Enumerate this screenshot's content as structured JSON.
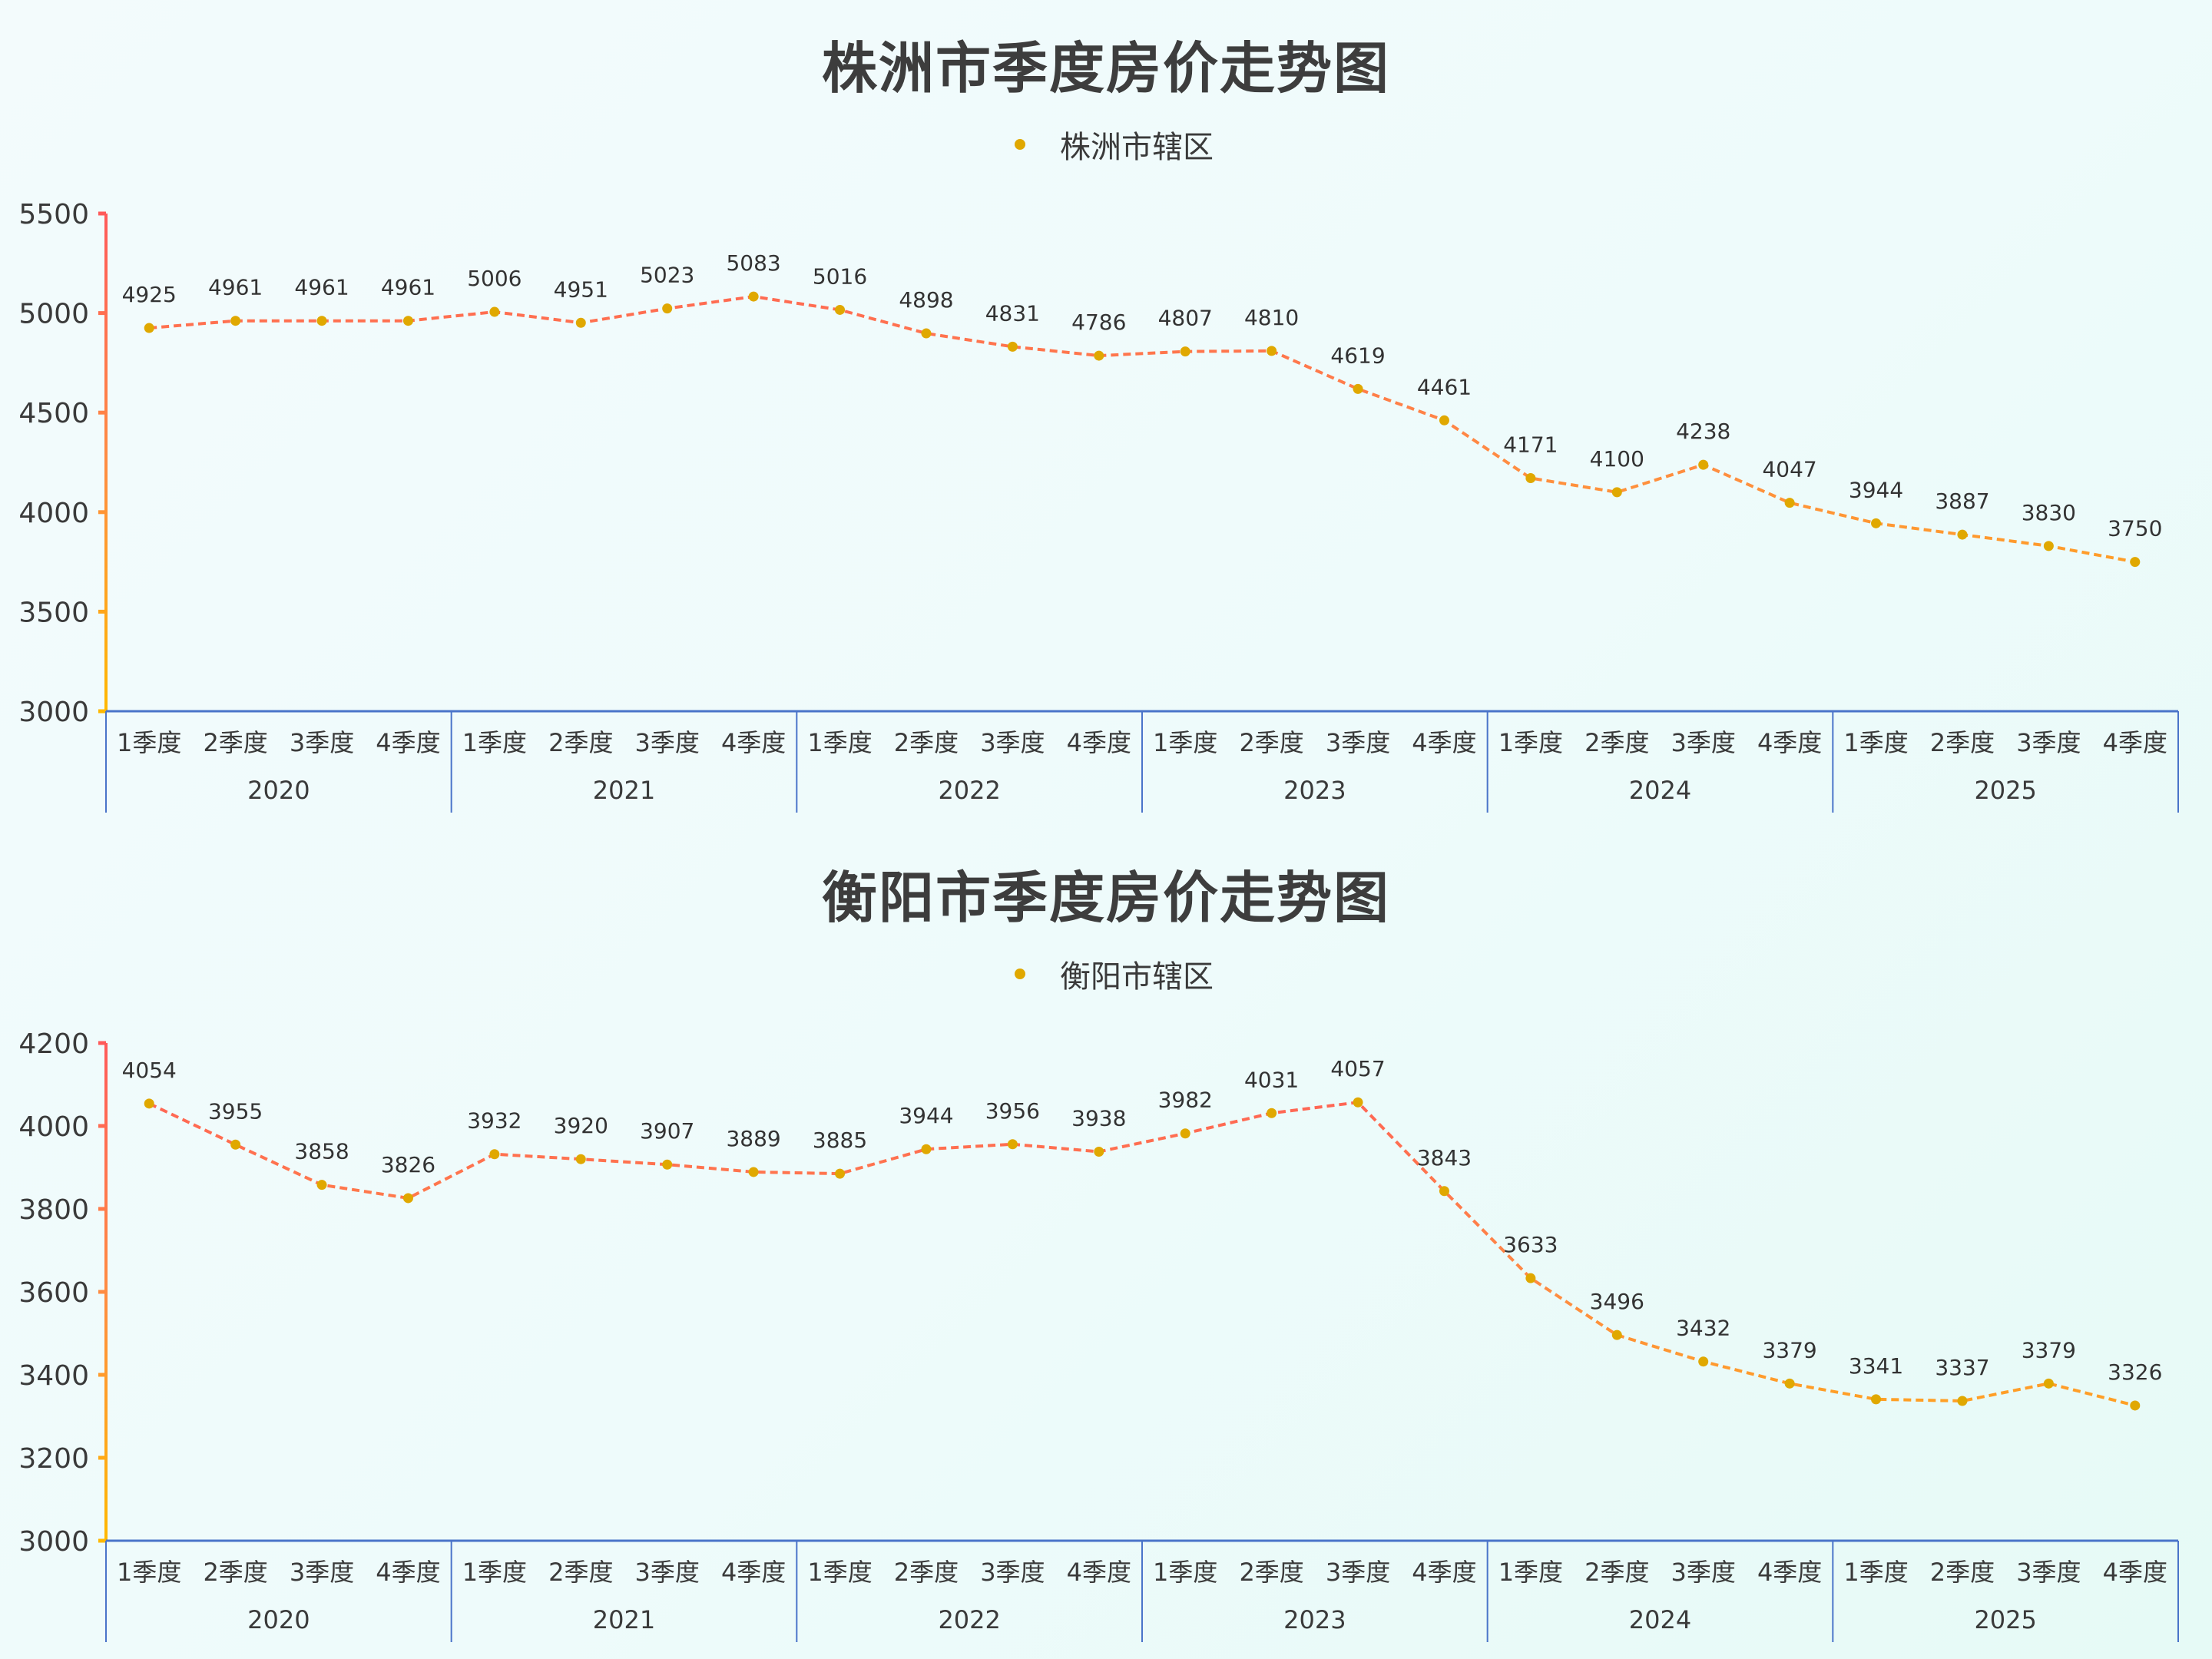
{
  "chart_data": [
    {
      "type": "line",
      "title": "株洲市季度房价走势图",
      "legend": [
        "株洲市辖区"
      ],
      "legend_position": "top-center",
      "xlabel": "",
      "ylabel": "",
      "ylim": [
        3000,
        5500
      ],
      "yticks": [
        3000,
        3500,
        4000,
        4500,
        5000,
        5500
      ],
      "grid": false,
      "x_groups": [
        "2020",
        "2021",
        "2022",
        "2023",
        "2024",
        "2025"
      ],
      "x_sub": [
        "1季度",
        "2季度",
        "3季度",
        "4季度"
      ],
      "categories": [
        "2020 1季度",
        "2020 2季度",
        "2020 3季度",
        "2020 4季度",
        "2021 1季度",
        "2021 2季度",
        "2021 3季度",
        "2021 4季度",
        "2022 1季度",
        "2022 2季度",
        "2022 3季度",
        "2022 4季度",
        "2023 1季度",
        "2023 2季度",
        "2023 3季度",
        "2023 4季度",
        "2024 1季度",
        "2024 2季度",
        "2024 3季度",
        "2024 4季度",
        "2025 1季度",
        "2025 2季度",
        "2025 3季度",
        "2025 4季度"
      ],
      "series": [
        {
          "name": "株洲市辖区",
          "values": [
            4925,
            4961,
            4961,
            4961,
            5006,
            4951,
            5023,
            5083,
            5016,
            4898,
            4831,
            4786,
            4807,
            4810,
            4619,
            4461,
            4171,
            4100,
            4238,
            4047,
            3944,
            3887,
            3830,
            3750
          ]
        }
      ]
    },
    {
      "type": "line",
      "title": "衡阳市季度房价走势图",
      "legend": [
        "衡阳市辖区"
      ],
      "legend_position": "top-center",
      "xlabel": "",
      "ylabel": "",
      "ylim": [
        3000,
        4200
      ],
      "yticks": [
        3000,
        3200,
        3400,
        3600,
        3800,
        4000,
        4200
      ],
      "grid": false,
      "x_groups": [
        "2020",
        "2021",
        "2022",
        "2023",
        "2024",
        "2025"
      ],
      "x_sub": [
        "1季度",
        "2季度",
        "3季度",
        "4季度"
      ],
      "categories": [
        "2020 1季度",
        "2020 2季度",
        "2020 3季度",
        "2020 4季度",
        "2021 1季度",
        "2021 2季度",
        "2021 3季度",
        "2021 4季度",
        "2022 1季度",
        "2022 2季度",
        "2022 3季度",
        "2022 4季度",
        "2023 1季度",
        "2023 2季度",
        "2023 3季度",
        "2023 4季度",
        "2024 1季度",
        "2024 2季度",
        "2024 3季度",
        "2024 4季度",
        "2025 1季度",
        "2025 2季度",
        "2025 3季度",
        "2025 4季度"
      ],
      "series": [
        {
          "name": "衡阳市辖区",
          "values": [
            4054,
            3955,
            3858,
            3826,
            3932,
            3920,
            3907,
            3889,
            3885,
            3944,
            3956,
            3938,
            3982,
            4031,
            4057,
            3843,
            3633,
            3496,
            3432,
            3379,
            3341,
            3337,
            3379,
            3326
          ]
        }
      ]
    }
  ],
  "colors": {
    "gradient_high": "#ff5a5a",
    "gradient_mid": "#ff8c42",
    "gradient_low": "#ffb800",
    "marker": "#e0a800",
    "x_axis": "#4a74c9",
    "text": "#3a3a3a"
  },
  "charts": [
    {
      "title": "株洲市季度房价走势图",
      "legend_label": "株洲市辖区"
    },
    {
      "title": "衡阳市季度房价走势图",
      "legend_label": "衡阳市辖区"
    }
  ]
}
